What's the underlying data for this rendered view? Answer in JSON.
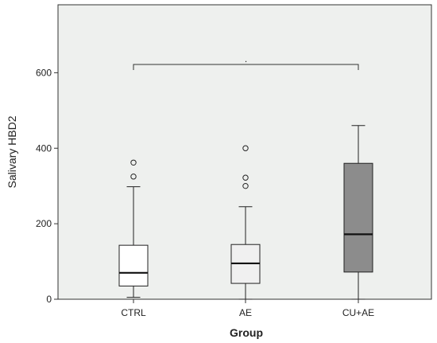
{
  "chart_data": {
    "type": "boxplot",
    "xlabel": "Group",
    "ylabel": "Salivary HBD2",
    "ylim": [
      0,
      780
    ],
    "yticks": [
      0,
      200,
      400,
      600
    ],
    "categories": [
      "CTRL",
      "AE",
      "CU+AE"
    ],
    "boxes": [
      {
        "category": "CTRL",
        "whisker_low": 5,
        "q1": 35,
        "median": 70,
        "q3": 143,
        "whisker_high": 298,
        "outliers": [
          325,
          362
        ],
        "fill": "#ffffff"
      },
      {
        "category": "AE",
        "whisker_low": 0,
        "q1": 42,
        "median": 95,
        "q3": 145,
        "whisker_high": 245,
        "outliers": [
          300,
          322,
          400
        ],
        "fill": "#f0f0f0"
      },
      {
        "category": "CU+AE",
        "whisker_low": 0,
        "q1": 72,
        "median": 172,
        "q3": 360,
        "whisker_high": 460,
        "outliers": [],
        "fill": "#8c8c8c"
      }
    ],
    "significance": {
      "from": "CTRL",
      "to": "CU+AE",
      "y": 622,
      "label": "."
    },
    "grid": false,
    "colors": {
      "plot_background": "#eef0ee",
      "axis": "#333333",
      "box_stroke": "#222222"
    }
  }
}
